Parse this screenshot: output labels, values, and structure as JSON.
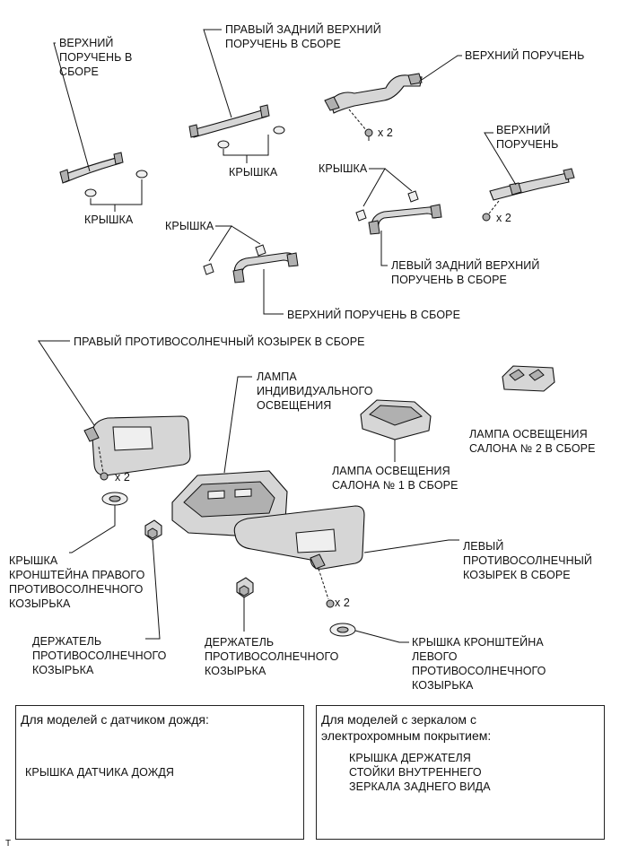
{
  "labels": {
    "upper_grip_assy": "ВЕРХНИЙ\nПОРУЧЕНЬ В\nСБОРЕ",
    "cap_1": "КРЫШКА",
    "rr_upper_grip_assy": "ПРАВЫЙ ЗАДНИЙ ВЕРХНИЙ\nПОРУЧЕНЬ В СБОРЕ",
    "cap_2": "КРЫШКА",
    "upper_grip_1": "ВЕРХНИЙ ПОРУЧЕНЬ",
    "x2_a": "x 2",
    "upper_grip_2": "ВЕРХНИЙ\nПОРУЧЕНЬ",
    "cap_3": "КРЫШКА",
    "x2_b": "x 2",
    "cap_4": "КРЫШКА",
    "lr_upper_grip_assy": "ЛЕВЫЙ ЗАДНИЙ ВЕРХНИЙ\nПОРУЧЕНЬ В СБОРЕ",
    "upper_grip_assy_2": "ВЕРХНИЙ ПОРУЧЕНЬ В СБОРЕ",
    "rh_visor_assy": "ПРАВЫЙ ПРОТИВОСОЛНЕЧНЫЙ КОЗЫРЕК В СБОРЕ",
    "personal_lamp": "ЛАМПА\nИНДИВИДУАЛЬНОГО\nОСВЕЩЕНИЯ",
    "room_lamp_2": "ЛАМПА ОСВЕЩЕНИЯ\nСАЛОНА № 2 В СБОРЕ",
    "x2_c": "x 2",
    "room_lamp_1": "ЛАМПА ОСВЕЩЕНИЯ\nСАЛОНА № 1 В СБОРЕ",
    "rh_visor_bracket_cover": "КРЫШКА\nКРОНШТЕЙНА ПРАВОГО\nПРОТИВОСОЛНЕЧНОГО\nКОЗЫРЬКА",
    "lh_visor_assy": "ЛЕВЫЙ\nПРОТИВОСОЛНЕЧНЫЙ\nКОЗЫРЕК В СБОРЕ",
    "x2_d": "x 2",
    "visor_holder_1": "ДЕРЖАТЕЛЬ\nПРОТИВОСОЛНЕЧНОГО\nКОЗЫРЬКА",
    "visor_holder_2": "ДЕРЖАТЕЛЬ\nПРОТИВОСОЛНЕЧНОГО\nКОЗЫРЬКА",
    "lh_visor_bracket_cover": "КРЫШКА КРОНШТЕЙНА\nЛЕВОГО\nПРОТИВОСОЛНЕЧНОГО\nКОЗЫРЬКА",
    "corner_mark": "T"
  },
  "box_rain": {
    "title": "Для моделей с датчиком дождя:",
    "label": "КРЫШКА ДАТЧИКА ДОЖДЯ"
  },
  "box_mirror": {
    "title": "Для моделей с зеркалом с\nэлектрохромным покрытием:",
    "label": "КРЫШКА ДЕРЖАТЕЛЯ\nСТОЙКИ ВНУТРЕННЕГО\nЗЕРКАЛА ЗАДНЕГО ВИДА"
  }
}
